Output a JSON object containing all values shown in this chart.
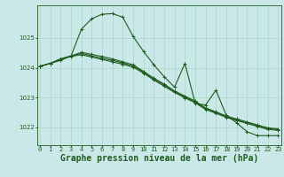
{
  "background_color": "#cbe8e8",
  "grid_color": "#a8d8c8",
  "line_color": "#1e5c1e",
  "title": "Graphe pression niveau de la mer (hPa)",
  "ylim": [
    1021.4,
    1026.1
  ],
  "yticks": [
    1022,
    1023,
    1024,
    1025
  ],
  "series": [
    [
      1024.05,
      1024.15,
      1024.25,
      1024.4,
      1025.3,
      1025.65,
      1025.8,
      1025.82,
      1025.7,
      1025.05,
      1024.55,
      1024.1,
      1023.7,
      1023.35,
      1024.15,
      1022.8,
      1022.75,
      1023.25,
      1022.4,
      1022.15,
      1021.85,
      1021.72,
      1021.72,
      1021.72
    ],
    [
      1024.05,
      1024.15,
      1024.3,
      1024.4,
      1024.52,
      1024.45,
      1024.38,
      1024.3,
      1024.2,
      1024.1,
      1023.88,
      1023.65,
      1023.45,
      1023.22,
      1023.05,
      1022.88,
      1022.65,
      1022.52,
      1022.38,
      1022.28,
      1022.18,
      1022.08,
      1021.98,
      1021.95
    ],
    [
      1024.05,
      1024.15,
      1024.3,
      1024.4,
      1024.48,
      1024.4,
      1024.32,
      1024.25,
      1024.16,
      1024.06,
      1023.85,
      1023.62,
      1023.42,
      1023.2,
      1023.02,
      1022.85,
      1022.62,
      1022.5,
      1022.35,
      1022.25,
      1022.15,
      1022.05,
      1021.96,
      1021.92
    ],
    [
      1024.05,
      1024.15,
      1024.28,
      1024.38,
      1024.44,
      1024.36,
      1024.28,
      1024.2,
      1024.12,
      1024.02,
      1023.82,
      1023.59,
      1023.38,
      1023.17,
      1022.99,
      1022.82,
      1022.6,
      1022.47,
      1022.33,
      1022.23,
      1022.13,
      1022.03,
      1021.93,
      1021.9
    ]
  ],
  "marker": "+",
  "markersize": 3.5,
  "linewidth": 0.8,
  "title_fontsize": 7.0,
  "tick_fontsize": 5.0,
  "xlabel_ticks": [
    0,
    1,
    2,
    3,
    4,
    5,
    6,
    7,
    8,
    9,
    10,
    11,
    12,
    13,
    14,
    15,
    16,
    17,
    18,
    19,
    20,
    21,
    22,
    23
  ]
}
